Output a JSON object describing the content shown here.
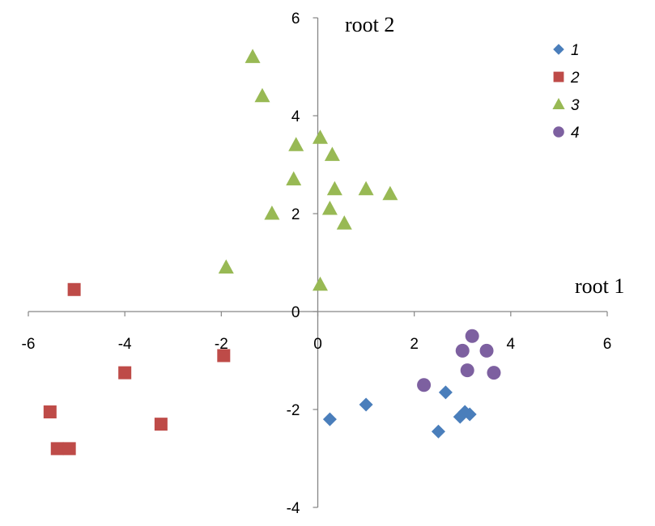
{
  "chart_data": {
    "type": "scatter",
    "title": "",
    "xlabel": "root 1",
    "ylabel": "root 2",
    "xlim": [
      -6,
      6
    ],
    "ylim": [
      -4,
      6
    ],
    "xticks": [
      -6,
      -4,
      -2,
      0,
      2,
      4,
      6
    ],
    "yticks": [
      -4,
      -2,
      0,
      2,
      4,
      6
    ],
    "legend_position": "top-right",
    "grid": false,
    "series": [
      {
        "name": "1",
        "marker": "diamond",
        "color": "#4a7ebb",
        "points": [
          [
            0.25,
            -2.2
          ],
          [
            1.0,
            -1.9
          ],
          [
            2.65,
            -1.65
          ],
          [
            2.95,
            -2.15
          ],
          [
            3.05,
            -2.05
          ],
          [
            3.15,
            -2.1
          ],
          [
            2.5,
            -2.45
          ]
        ]
      },
      {
        "name": "2",
        "marker": "square",
        "color": "#be4b48",
        "points": [
          [
            -5.05,
            0.45
          ],
          [
            -4.0,
            -1.25
          ],
          [
            -1.95,
            -0.9
          ],
          [
            -5.55,
            -2.05
          ],
          [
            -3.25,
            -2.3
          ],
          [
            -5.4,
            -2.8
          ],
          [
            -5.15,
            -2.8
          ]
        ]
      },
      {
        "name": "3",
        "marker": "triangle",
        "color": "#98b954",
        "points": [
          [
            -1.35,
            5.2
          ],
          [
            -1.15,
            4.4
          ],
          [
            -0.45,
            3.4
          ],
          [
            0.05,
            3.55
          ],
          [
            0.3,
            3.2
          ],
          [
            -0.5,
            2.7
          ],
          [
            0.35,
            2.5
          ],
          [
            1.0,
            2.5
          ],
          [
            1.5,
            2.4
          ],
          [
            -0.95,
            2.0
          ],
          [
            0.25,
            2.1
          ],
          [
            0.55,
            1.8
          ],
          [
            -1.9,
            0.9
          ],
          [
            0.05,
            0.55
          ]
        ]
      },
      {
        "name": "4",
        "marker": "circle",
        "color": "#7d60a0",
        "points": [
          [
            3.2,
            -0.5
          ],
          [
            3.0,
            -0.8
          ],
          [
            3.5,
            -0.8
          ],
          [
            3.1,
            -1.2
          ],
          [
            3.65,
            -1.25
          ],
          [
            2.2,
            -1.5
          ]
        ]
      }
    ]
  }
}
